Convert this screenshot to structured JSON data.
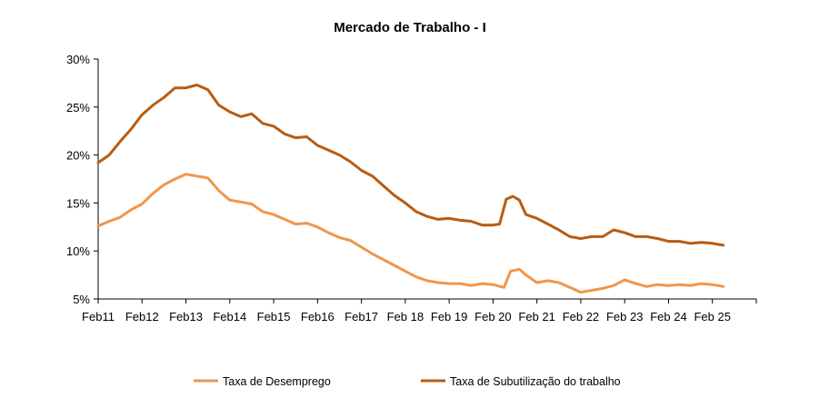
{
  "chart_data": {
    "type": "line",
    "title": "Mercado de Trabalho - I",
    "xlabel": "",
    "ylabel": "",
    "ylim": [
      5,
      30
    ],
    "yticks": [
      "30%",
      "25%",
      "20%",
      "15%",
      "10%",
      "5%"
    ],
    "yticks_values": [
      30,
      25,
      20,
      15,
      10,
      5
    ],
    "xticks": [
      "Feb11",
      "Feb12",
      "Feb13",
      "Feb14",
      "Feb15",
      "Feb16",
      "Feb17",
      "Feb 18",
      "Feb 19",
      "Feb 20",
      "Feb 21",
      "Feb 22",
      "Feb 23",
      "Feb 24",
      "Feb 25"
    ],
    "xticks_years": [
      2011,
      2012,
      2013,
      2014,
      2015,
      2016,
      2017,
      2018,
      2019,
      2020,
      2021,
      2022,
      2023,
      2024,
      2025
    ],
    "xlim": [
      2011.0,
      2026.0
    ],
    "grid": false,
    "legend_position": "bottom",
    "series": [
      {
        "name": "Taxa de Desemprego",
        "color": "#f0964b",
        "x": [
          2011.0,
          2011.25,
          2011.5,
          2011.75,
          2012.0,
          2012.25,
          2012.5,
          2012.75,
          2013.0,
          2013.25,
          2013.5,
          2013.75,
          2014.0,
          2014.25,
          2014.5,
          2014.75,
          2015.0,
          2015.25,
          2015.5,
          2015.75,
          2016.0,
          2016.25,
          2016.5,
          2016.75,
          2017.0,
          2017.25,
          2017.5,
          2017.75,
          2018.0,
          2018.25,
          2018.5,
          2018.75,
          2019.0,
          2019.25,
          2019.5,
          2019.75,
          2020.0,
          2020.25,
          2020.4,
          2020.6,
          2020.75,
          2021.0,
          2021.25,
          2021.5,
          2021.75,
          2022.0,
          2022.25,
          2022.5,
          2022.75,
          2023.0,
          2023.25,
          2023.5,
          2023.75,
          2024.0,
          2024.25,
          2024.5,
          2024.75,
          2025.0,
          2025.25
        ],
        "values": [
          12.6,
          13.1,
          13.5,
          14.3,
          14.9,
          16.0,
          16.9,
          17.5,
          18.0,
          17.8,
          17.6,
          16.3,
          15.3,
          15.1,
          14.9,
          14.1,
          13.8,
          13.3,
          12.8,
          12.9,
          12.5,
          11.9,
          11.4,
          11.1,
          10.4,
          9.7,
          9.1,
          8.5,
          7.9,
          7.3,
          6.9,
          6.7,
          6.6,
          6.6,
          6.4,
          6.6,
          6.5,
          6.2,
          7.9,
          8.1,
          7.5,
          6.7,
          6.9,
          6.7,
          6.2,
          5.7,
          5.9,
          6.1,
          6.4,
          7.0,
          6.6,
          6.3,
          6.5,
          6.4,
          6.5,
          6.4,
          6.6,
          6.5,
          6.3
        ]
      },
      {
        "name": "Taxa de Subutilização do trabalho",
        "color": "#b85c12",
        "x": [
          2011.0,
          2011.25,
          2011.5,
          2011.75,
          2012.0,
          2012.25,
          2012.5,
          2012.75,
          2013.0,
          2013.25,
          2013.5,
          2013.75,
          2014.0,
          2014.25,
          2014.5,
          2014.75,
          2015.0,
          2015.25,
          2015.5,
          2015.75,
          2016.0,
          2016.25,
          2016.5,
          2016.75,
          2017.0,
          2017.25,
          2017.5,
          2017.75,
          2018.0,
          2018.25,
          2018.5,
          2018.75,
          2019.0,
          2019.25,
          2019.5,
          2019.75,
          2020.0,
          2020.15,
          2020.3,
          2020.45,
          2020.6,
          2020.75,
          2021.0,
          2021.25,
          2021.5,
          2021.75,
          2022.0,
          2022.25,
          2022.5,
          2022.75,
          2023.0,
          2023.25,
          2023.5,
          2023.75,
          2024.0,
          2024.25,
          2024.5,
          2024.75,
          2025.0,
          2025.25
        ],
        "values": [
          19.2,
          20.0,
          21.4,
          22.7,
          24.2,
          25.2,
          26.0,
          27.0,
          27.0,
          27.3,
          26.8,
          25.2,
          24.5,
          24.0,
          24.3,
          23.3,
          23.0,
          22.2,
          21.8,
          21.9,
          21.0,
          20.5,
          20.0,
          19.3,
          18.4,
          17.8,
          16.8,
          15.8,
          15.0,
          14.1,
          13.6,
          13.3,
          13.4,
          13.2,
          13.1,
          12.7,
          12.7,
          12.8,
          15.4,
          15.7,
          15.3,
          13.8,
          13.4,
          12.8,
          12.2,
          11.5,
          11.3,
          11.5,
          11.5,
          12.2,
          11.9,
          11.5,
          11.5,
          11.3,
          11.0,
          11.0,
          10.8,
          10.9,
          10.8,
          10.6
        ]
      }
    ]
  }
}
